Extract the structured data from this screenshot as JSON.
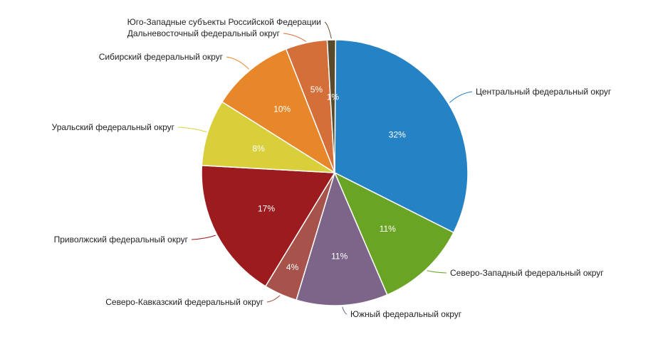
{
  "chart_data": {
    "type": "pie",
    "title": "",
    "categories": [
      "Центральный федеральный округ",
      "Северо-Западный федеральный округ",
      "Южный федеральный округ",
      "Северо-Кавказский федеральный округ",
      "Приволжский федеральный округ",
      "Уральский федеральный округ",
      "Сибирский федеральный округ",
      "Дальневосточный федеральный округ",
      "Юго-Западные субъекты Российской Федерации"
    ],
    "values": [
      32,
      11,
      11,
      4,
      17,
      8,
      10,
      5,
      1
    ],
    "value_labels": [
      "32%",
      "11%",
      "11%",
      "4%",
      "17%",
      "8%",
      "10%",
      "5%",
      "1%"
    ],
    "colors": [
      "#2582c4",
      "#6aa424",
      "#7d6489",
      "#a7524a",
      "#9b1b1e",
      "#d8cf3a",
      "#e8862a",
      "#d56f3a",
      "#5a4a2c"
    ],
    "legend": "none",
    "start_angle": "12 o'clock",
    "direction": "clockwise"
  }
}
